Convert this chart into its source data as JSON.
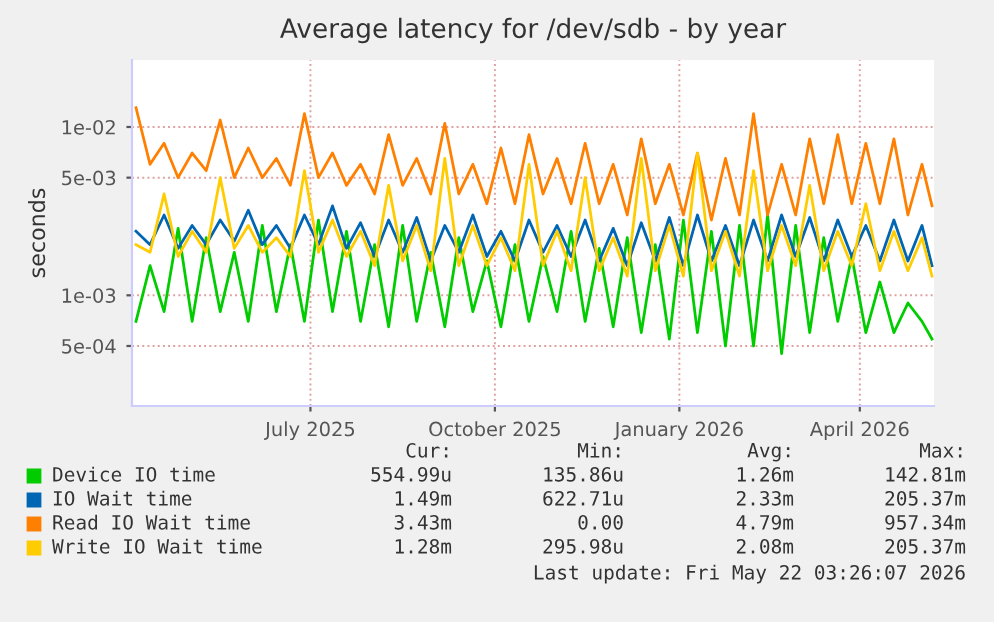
{
  "chart_data": {
    "type": "line",
    "title": "Average latency for /dev/sdb - by year",
    "ylabel": "seconds",
    "x": [
      "2025-04-05",
      "2025-04-12",
      "2025-04-19",
      "2025-04-26",
      "2025-05-03",
      "2025-05-10",
      "2025-05-17",
      "2025-05-24",
      "2025-05-31",
      "2025-06-07",
      "2025-06-14",
      "2025-06-21",
      "2025-06-28",
      "2025-07-05",
      "2025-07-12",
      "2025-07-19",
      "2025-07-26",
      "2025-08-02",
      "2025-08-09",
      "2025-08-16",
      "2025-08-23",
      "2025-08-30",
      "2025-09-06",
      "2025-09-13",
      "2025-09-20",
      "2025-09-27",
      "2025-10-04",
      "2025-10-11",
      "2025-10-18",
      "2025-10-25",
      "2025-11-01",
      "2025-11-08",
      "2025-11-15",
      "2025-11-22",
      "2025-11-29",
      "2025-12-06",
      "2025-12-13",
      "2025-12-20",
      "2025-12-27",
      "2026-01-03",
      "2026-01-10",
      "2026-01-17",
      "2026-01-24",
      "2026-01-31",
      "2026-02-07",
      "2026-02-14",
      "2026-02-21",
      "2026-02-28",
      "2026-03-07",
      "2026-03-14",
      "2026-03-21",
      "2026-03-28",
      "2026-04-04",
      "2026-04-11",
      "2026-04-18",
      "2026-04-25",
      "2026-05-02",
      "2026-05-07"
    ],
    "series": [
      {
        "name": "Device IO time",
        "color": "#00cc00",
        "values": [
          0.0007,
          0.0015,
          0.0008,
          0.0025,
          0.0007,
          0.0022,
          0.0008,
          0.0018,
          0.0007,
          0.0026,
          0.0008,
          0.002,
          0.0007,
          0.0028,
          0.0008,
          0.0024,
          0.0007,
          0.002,
          0.00065,
          0.0026,
          0.0007,
          0.0018,
          0.00065,
          0.0022,
          0.0008,
          0.0016,
          0.00065,
          0.002,
          0.0007,
          0.0017,
          0.0008,
          0.0024,
          0.0007,
          0.0019,
          0.00065,
          0.0022,
          0.0006,
          0.002,
          0.00055,
          0.0028,
          0.0006,
          0.0024,
          0.0005,
          0.0026,
          0.0005,
          0.003,
          0.00045,
          0.0026,
          0.0006,
          0.0022,
          0.0007,
          0.0017,
          0.0006,
          0.0012,
          0.0006,
          0.0009,
          0.0007,
          0.00055
        ]
      },
      {
        "name": "IO Wait time",
        "color": "#0066b3",
        "values": [
          0.0024,
          0.002,
          0.003,
          0.0019,
          0.0026,
          0.002,
          0.0028,
          0.0021,
          0.0032,
          0.002,
          0.0026,
          0.0019,
          0.003,
          0.002,
          0.0034,
          0.0019,
          0.0027,
          0.0017,
          0.0028,
          0.0018,
          0.0029,
          0.0016,
          0.0026,
          0.0018,
          0.003,
          0.0017,
          0.0024,
          0.0016,
          0.0028,
          0.0018,
          0.0026,
          0.0017,
          0.0028,
          0.0016,
          0.0025,
          0.0015,
          0.0027,
          0.0016,
          0.0029,
          0.0015,
          0.003,
          0.0016,
          0.0026,
          0.0015,
          0.0028,
          0.0016,
          0.003,
          0.0017,
          0.0029,
          0.0016,
          0.0028,
          0.0017,
          0.0026,
          0.0016,
          0.0028,
          0.0016,
          0.0026,
          0.0015
        ]
      },
      {
        "name": "Read IO Wait time",
        "color": "#ff8000",
        "values": [
          0.013,
          0.006,
          0.008,
          0.005,
          0.007,
          0.0055,
          0.011,
          0.005,
          0.0075,
          0.005,
          0.0065,
          0.0045,
          0.012,
          0.005,
          0.007,
          0.0045,
          0.006,
          0.004,
          0.009,
          0.0045,
          0.0065,
          0.004,
          0.0105,
          0.004,
          0.006,
          0.0035,
          0.0075,
          0.0035,
          0.009,
          0.004,
          0.0065,
          0.0035,
          0.008,
          0.0035,
          0.006,
          0.003,
          0.0085,
          0.0035,
          0.006,
          0.003,
          0.007,
          0.0028,
          0.0065,
          0.003,
          0.012,
          0.003,
          0.006,
          0.003,
          0.0085,
          0.0035,
          0.009,
          0.0035,
          0.008,
          0.0035,
          0.0085,
          0.003,
          0.006,
          0.0034
        ]
      },
      {
        "name": "Write IO Wait time",
        "color": "#ffcc00",
        "values": [
          0.002,
          0.0018,
          0.004,
          0.0017,
          0.0024,
          0.0018,
          0.005,
          0.0019,
          0.0026,
          0.0018,
          0.0022,
          0.0017,
          0.0055,
          0.0018,
          0.0028,
          0.0017,
          0.0024,
          0.0015,
          0.0045,
          0.0016,
          0.0026,
          0.0014,
          0.0065,
          0.0015,
          0.0026,
          0.0015,
          0.0022,
          0.0014,
          0.006,
          0.0015,
          0.0024,
          0.0014,
          0.005,
          0.0014,
          0.0022,
          0.0013,
          0.0065,
          0.0014,
          0.0026,
          0.0013,
          0.007,
          0.0014,
          0.0024,
          0.0013,
          0.0055,
          0.0014,
          0.0026,
          0.0015,
          0.0045,
          0.0014,
          0.0024,
          0.0015,
          0.0035,
          0.0014,
          0.0024,
          0.0014,
          0.0022,
          0.0013
        ]
      }
    ],
    "log": true,
    "ylim": [
      0.00022,
      0.025
    ],
    "yticks": [
      {
        "value": 0.0005,
        "label": "5e-04"
      },
      {
        "value": 0.001,
        "label": "1e-03"
      },
      {
        "value": 0.005,
        "label": "5e-03"
      },
      {
        "value": 0.01,
        "label": "1e-02"
      }
    ],
    "xlim": [
      "2025-04-03",
      "2026-05-08"
    ],
    "xticks": [
      {
        "value": "2025-07-01",
        "label": "July 2025"
      },
      {
        "value": "2025-10-01",
        "label": "October 2025"
      },
      {
        "value": "2026-01-01",
        "label": "January 2026"
      },
      {
        "value": "2026-04-01",
        "label": "April 2026"
      }
    ],
    "grid": true,
    "legend": "bottom",
    "line_style": "solid",
    "marker": "none",
    "annotations": [
      "Cur:",
      "Min:",
      "Avg:",
      "Max:",
      "554.99u",
      "135.86u",
      "1.26m",
      "142.81m",
      "1.49m",
      "622.71u",
      "2.33m",
      "205.37m",
      "3.43m",
      "0.00",
      "4.79m",
      "957.34m",
      "1.28m",
      "295.98u",
      "2.08m",
      "205.37m",
      "Last update: Fri May 22 03:26:07 2026"
    ]
  }
}
